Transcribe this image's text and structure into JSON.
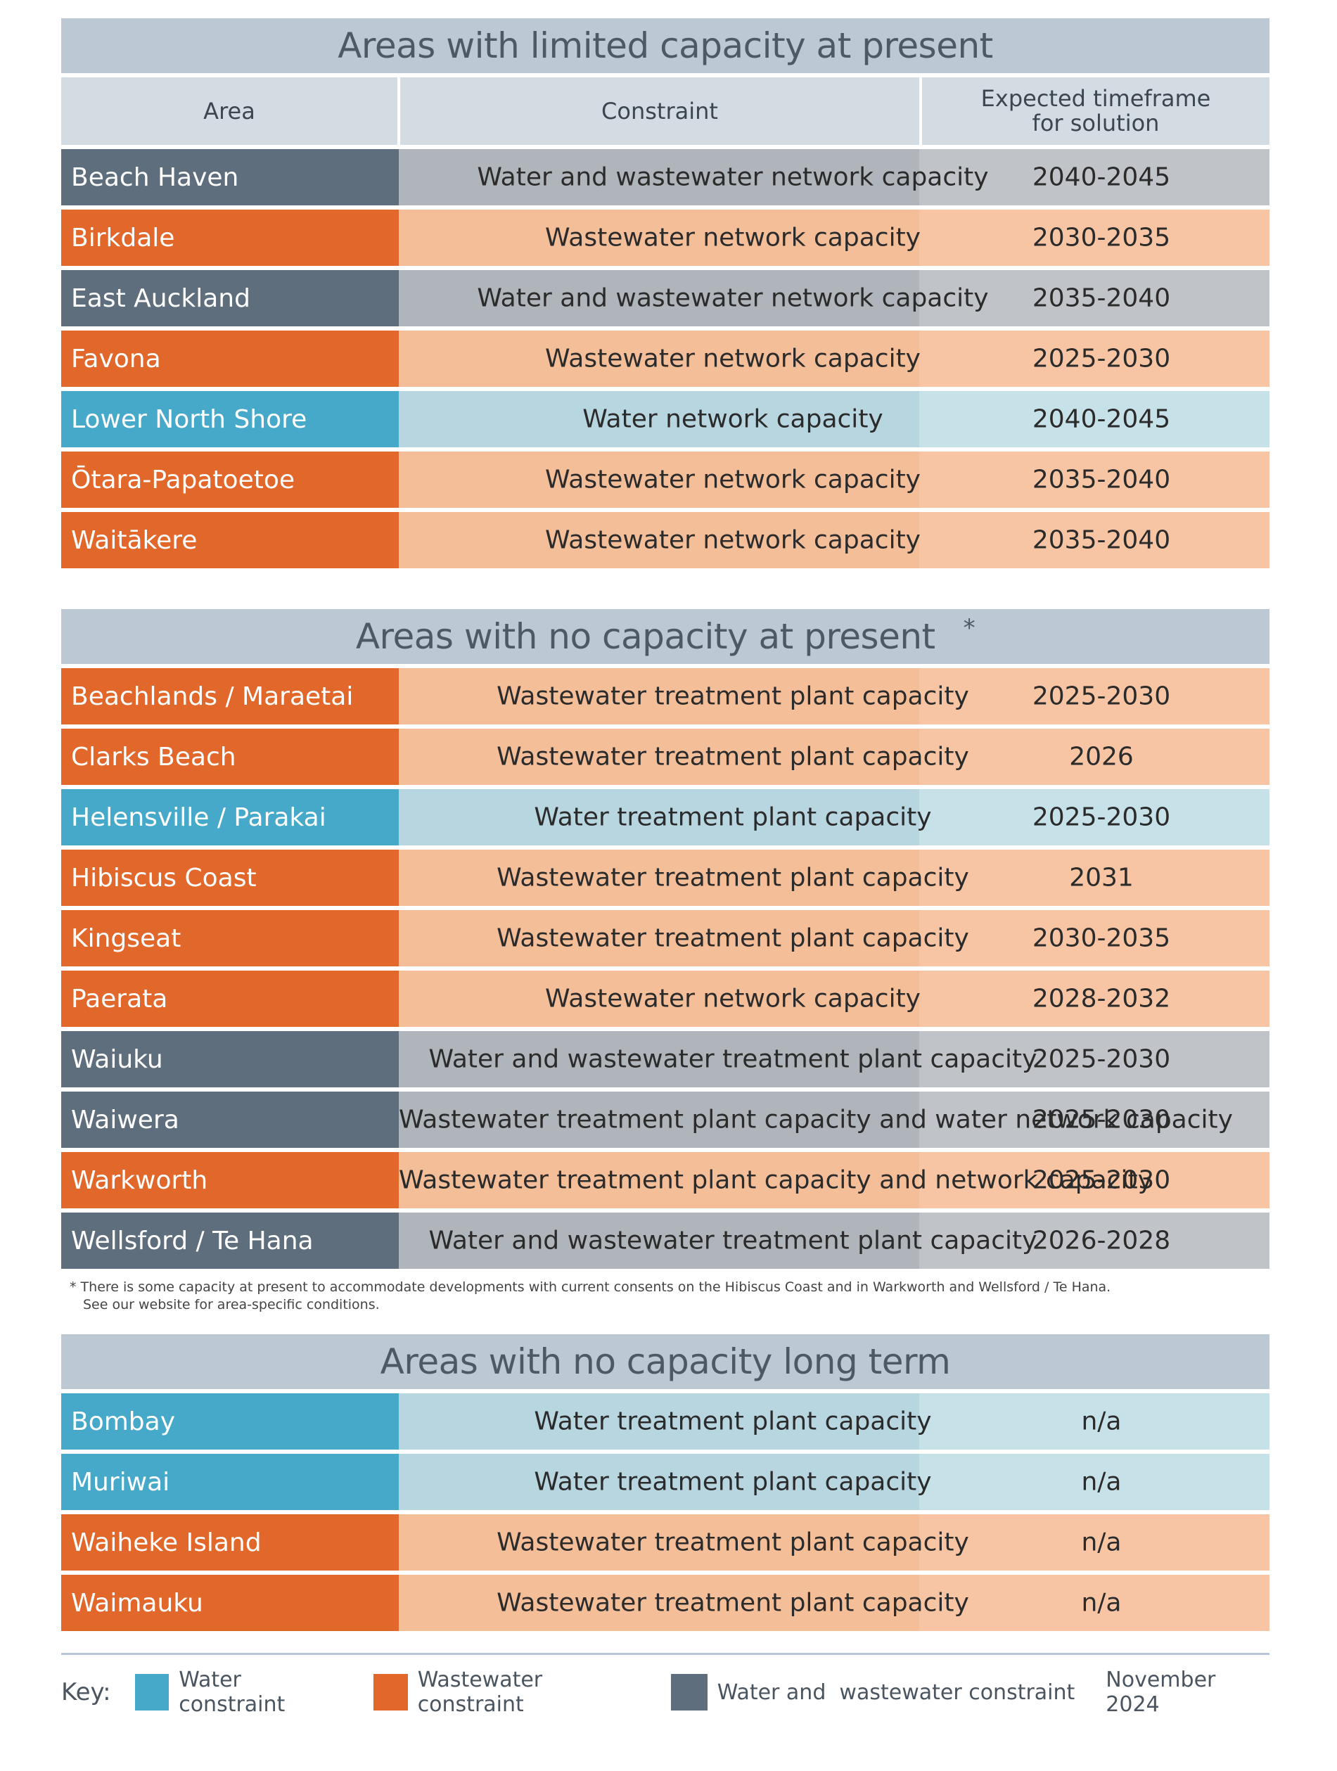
{
  "headers": {
    "area": "Area",
    "constraint": "Constraint",
    "timeframe_line1": "Expected timeframe",
    "timeframe_line2": "for solution"
  },
  "sections": [
    {
      "title": "Areas with limited capacity at present",
      "rows": [
        {
          "area": "Beach Haven",
          "constraint": "Water and wastewater network capacity",
          "timeframe": "2040-2045",
          "type": "both"
        },
        {
          "area": "Birkdale",
          "constraint": "Wastewater network capacity",
          "timeframe": "2030-2035",
          "type": "waste"
        },
        {
          "area": "East Auckland",
          "constraint": "Water and wastewater network capacity",
          "timeframe": "2035-2040",
          "type": "both"
        },
        {
          "area": "Favona",
          "constraint": "Wastewater network capacity",
          "timeframe": "2025-2030",
          "type": "waste"
        },
        {
          "area": "Lower North Shore",
          "constraint": "Water network capacity",
          "timeframe": "2040-2045",
          "type": "water"
        },
        {
          "area": "Ōtara-Papatoetoe",
          "constraint": "Wastewater network capacity",
          "timeframe": "2035-2040",
          "type": "waste"
        },
        {
          "area": "Waitākere",
          "constraint": "Wastewater network capacity",
          "timeframe": "2035-2040",
          "type": "waste"
        }
      ]
    },
    {
      "title": "Areas with no capacity at present",
      "title_marker": "*",
      "rows": [
        {
          "area": "Beachlands / Maraetai",
          "constraint": "Wastewater treatment plant capacity",
          "timeframe": "2025-2030",
          "type": "waste"
        },
        {
          "area": "Clarks Beach",
          "constraint": "Wastewater treatment plant capacity",
          "timeframe": "2026",
          "type": "waste"
        },
        {
          "area": "Helensville / Parakai",
          "constraint": "Water treatment plant capacity",
          "timeframe": "2025-2030",
          "type": "water"
        },
        {
          "area": "Hibiscus Coast",
          "constraint": "Wastewater treatment plant capacity",
          "timeframe": "2031",
          "type": "waste"
        },
        {
          "area": "Kingseat",
          "constraint": "Wastewater treatment plant capacity",
          "timeframe": "2030-2035",
          "type": "waste"
        },
        {
          "area": "Paerata",
          "constraint": "Wastewater network capacity",
          "timeframe": "2028-2032",
          "type": "waste"
        },
        {
          "area": "Waiuku",
          "constraint": "Water and wastewater treatment plant capacity",
          "timeframe": "2025-2030",
          "type": "both"
        },
        {
          "area": "Waiwera",
          "constraint": "Wastewater treatment plant capacity and water network capacity",
          "timeframe": "2025-2030",
          "type": "both"
        },
        {
          "area": "Warkworth",
          "constraint": "Wastewater treatment plant capacity and network capacity",
          "timeframe": "2025-2030",
          "type": "waste"
        },
        {
          "area": "Wellsford / Te Hana",
          "constraint": "Water and wastewater treatment plant capacity",
          "timeframe": "2026-2028",
          "type": "both"
        }
      ],
      "footnote_line1": "* There is some capacity at present to accommodate developments with current consents on the Hibiscus Coast and in Warkworth and Wellsford / Te Hana.",
      "footnote_line2": "See our website for area-specific conditions."
    },
    {
      "title": "Areas with no capacity long term",
      "rows": [
        {
          "area": "Bombay",
          "constraint": "Water treatment plant capacity",
          "timeframe": "n/a",
          "type": "water"
        },
        {
          "area": "Muriwai",
          "constraint": "Water treatment plant capacity",
          "timeframe": "n/a",
          "type": "water"
        },
        {
          "area": "Waiheke Island",
          "constraint": "Wastewater treatment plant capacity",
          "timeframe": "n/a",
          "type": "waste"
        },
        {
          "area": "Waimauku",
          "constraint": "Wastewater treatment plant capacity",
          "timeframe": "n/a",
          "type": "waste"
        }
      ]
    }
  ],
  "key": {
    "label": "Key:",
    "water": "Water constraint",
    "waste": "Wastewater constraint",
    "both": "Water and  wastewater constraint",
    "date": "November 2024"
  },
  "colors": {
    "water": "#46a9c9",
    "waste": "#e2672b",
    "both": "#5f6e7d",
    "title_bar": "#bcc8d4"
  }
}
